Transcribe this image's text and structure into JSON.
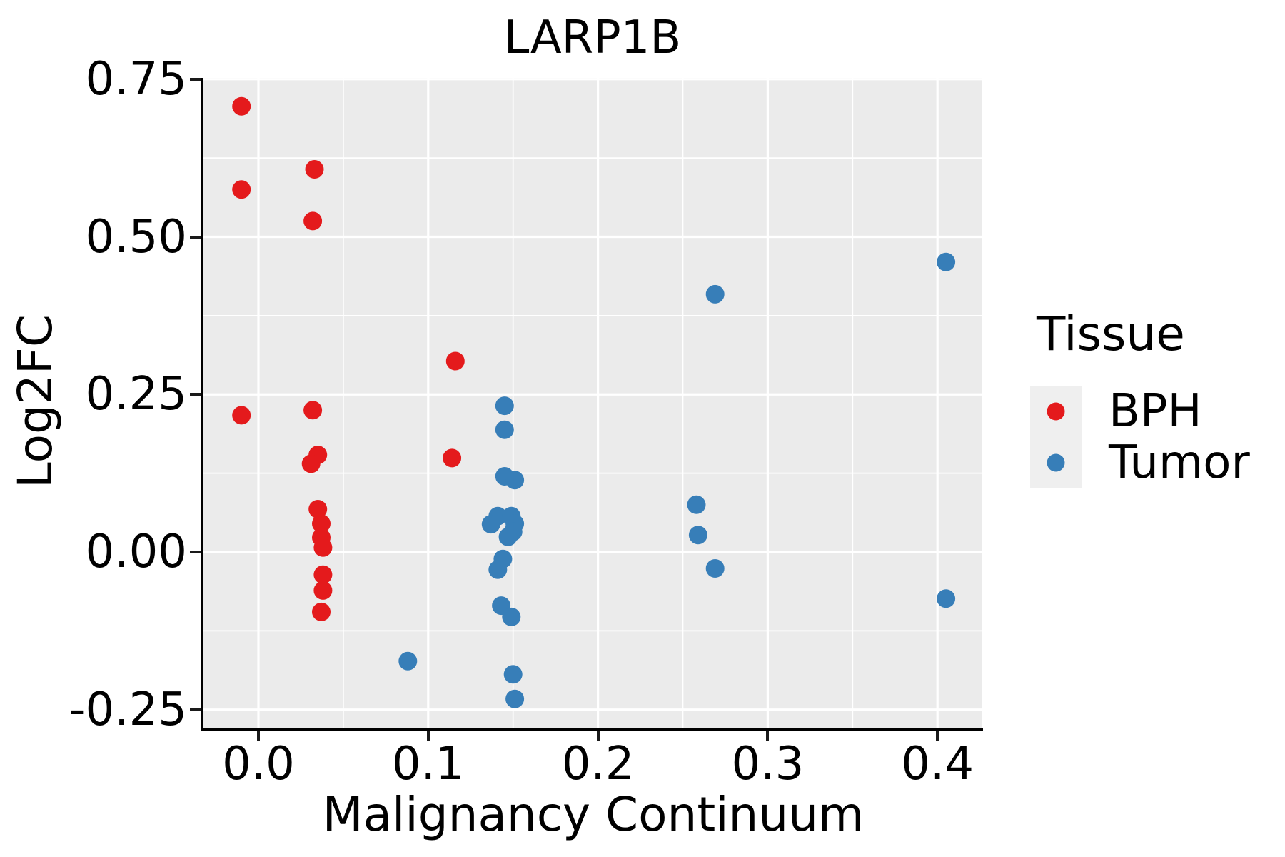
{
  "title": "LARP1B",
  "x_axis": {
    "label": "Malignancy Continuum",
    "tick_labels": [
      "0.0",
      "0.1",
      "0.2",
      "0.3",
      "0.4"
    ],
    "tick_values": [
      0.0,
      0.1,
      0.2,
      0.3,
      0.4
    ],
    "minor_values": [
      0.05,
      0.15,
      0.25,
      0.35
    ]
  },
  "y_axis": {
    "label": "Log2FC",
    "tick_labels": [
      "0.75",
      "0.50",
      "0.25",
      "0.00",
      "-0.25"
    ],
    "tick_values": [
      0.75,
      0.5,
      0.25,
      0.0,
      -0.25
    ],
    "minor_values": [
      0.625,
      0.375,
      0.125,
      -0.125
    ]
  },
  "legend": {
    "title": "Tissue",
    "items": [
      {
        "label": "BPH",
        "color": "#E41A1C"
      },
      {
        "label": "Tumor",
        "color": "#377EB8"
      }
    ]
  },
  "style": {
    "panel_bg": "#EBEBEB",
    "grid_color": "#FFFFFF",
    "key_bg": "#EFEFEF",
    "point_radius": 13
  },
  "chart_data": {
    "type": "scatter",
    "title": "LARP1B",
    "xlabel": "Malignancy Continuum",
    "ylabel": "Log2FC",
    "xlim": [
      -0.032,
      0.427
    ],
    "ylim": [
      -0.28,
      0.752
    ],
    "x_ticks": [
      0.0,
      0.1,
      0.2,
      0.3,
      0.4
    ],
    "y_ticks": [
      0.75,
      0.5,
      0.25,
      0.0,
      -0.25
    ],
    "grid": "white major and minor gridlines on gray panel",
    "legend_position": "right",
    "series": [
      {
        "name": "BPH",
        "color": "#E41A1C",
        "points": [
          [
            -0.01,
            0.707
          ],
          [
            -0.01,
            0.575
          ],
          [
            0.033,
            0.607
          ],
          [
            0.032,
            0.525
          ],
          [
            -0.01,
            0.217
          ],
          [
            0.032,
            0.225
          ],
          [
            0.035,
            0.154
          ],
          [
            0.031,
            0.14
          ],
          [
            0.035,
            0.068
          ],
          [
            0.037,
            0.045
          ],
          [
            0.037,
            0.023
          ],
          [
            0.038,
            0.007
          ],
          [
            0.038,
            -0.036
          ],
          [
            0.038,
            -0.061
          ],
          [
            0.037,
            -0.095
          ],
          [
            0.116,
            0.303
          ],
          [
            0.114,
            0.149
          ]
        ]
      },
      {
        "name": "Tumor",
        "color": "#377EB8",
        "points": [
          [
            0.088,
            -0.173
          ],
          [
            0.145,
            0.232
          ],
          [
            0.145,
            0.194
          ],
          [
            0.145,
            0.12
          ],
          [
            0.151,
            0.114
          ],
          [
            0.141,
            0.057
          ],
          [
            0.137,
            0.044
          ],
          [
            0.149,
            0.057
          ],
          [
            0.151,
            0.045
          ],
          [
            0.15,
            0.032
          ],
          [
            0.147,
            0.024
          ],
          [
            0.144,
            -0.011
          ],
          [
            0.141,
            -0.028
          ],
          [
            0.143,
            -0.085
          ],
          [
            0.149,
            -0.103
          ],
          [
            0.15,
            -0.194
          ],
          [
            0.151,
            -0.233
          ],
          [
            0.269,
            0.409
          ],
          [
            0.258,
            0.075
          ],
          [
            0.259,
            0.027
          ],
          [
            0.269,
            -0.026
          ],
          [
            0.405,
            0.46
          ],
          [
            0.405,
            -0.074
          ]
        ]
      }
    ]
  }
}
